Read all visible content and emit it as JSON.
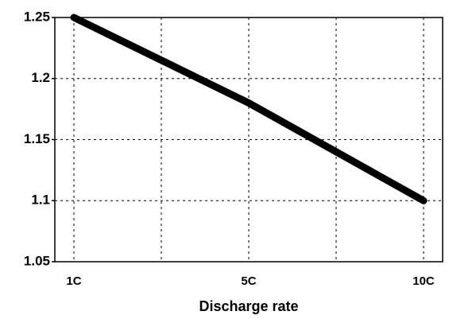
{
  "chart_data": {
    "type": "line",
    "x_label": "Discharge rate",
    "categories": [
      "1C",
      null,
      "5C",
      null,
      "10C"
    ],
    "values": [
      1.25,
      1.215,
      1.18,
      1.14,
      1.1
    ],
    "color": "#000000",
    "ylim": [
      1.05,
      1.25
    ],
    "yticks": [
      1.05,
      1.1,
      1.15,
      1.2,
      1.25
    ],
    "grid": true
  }
}
